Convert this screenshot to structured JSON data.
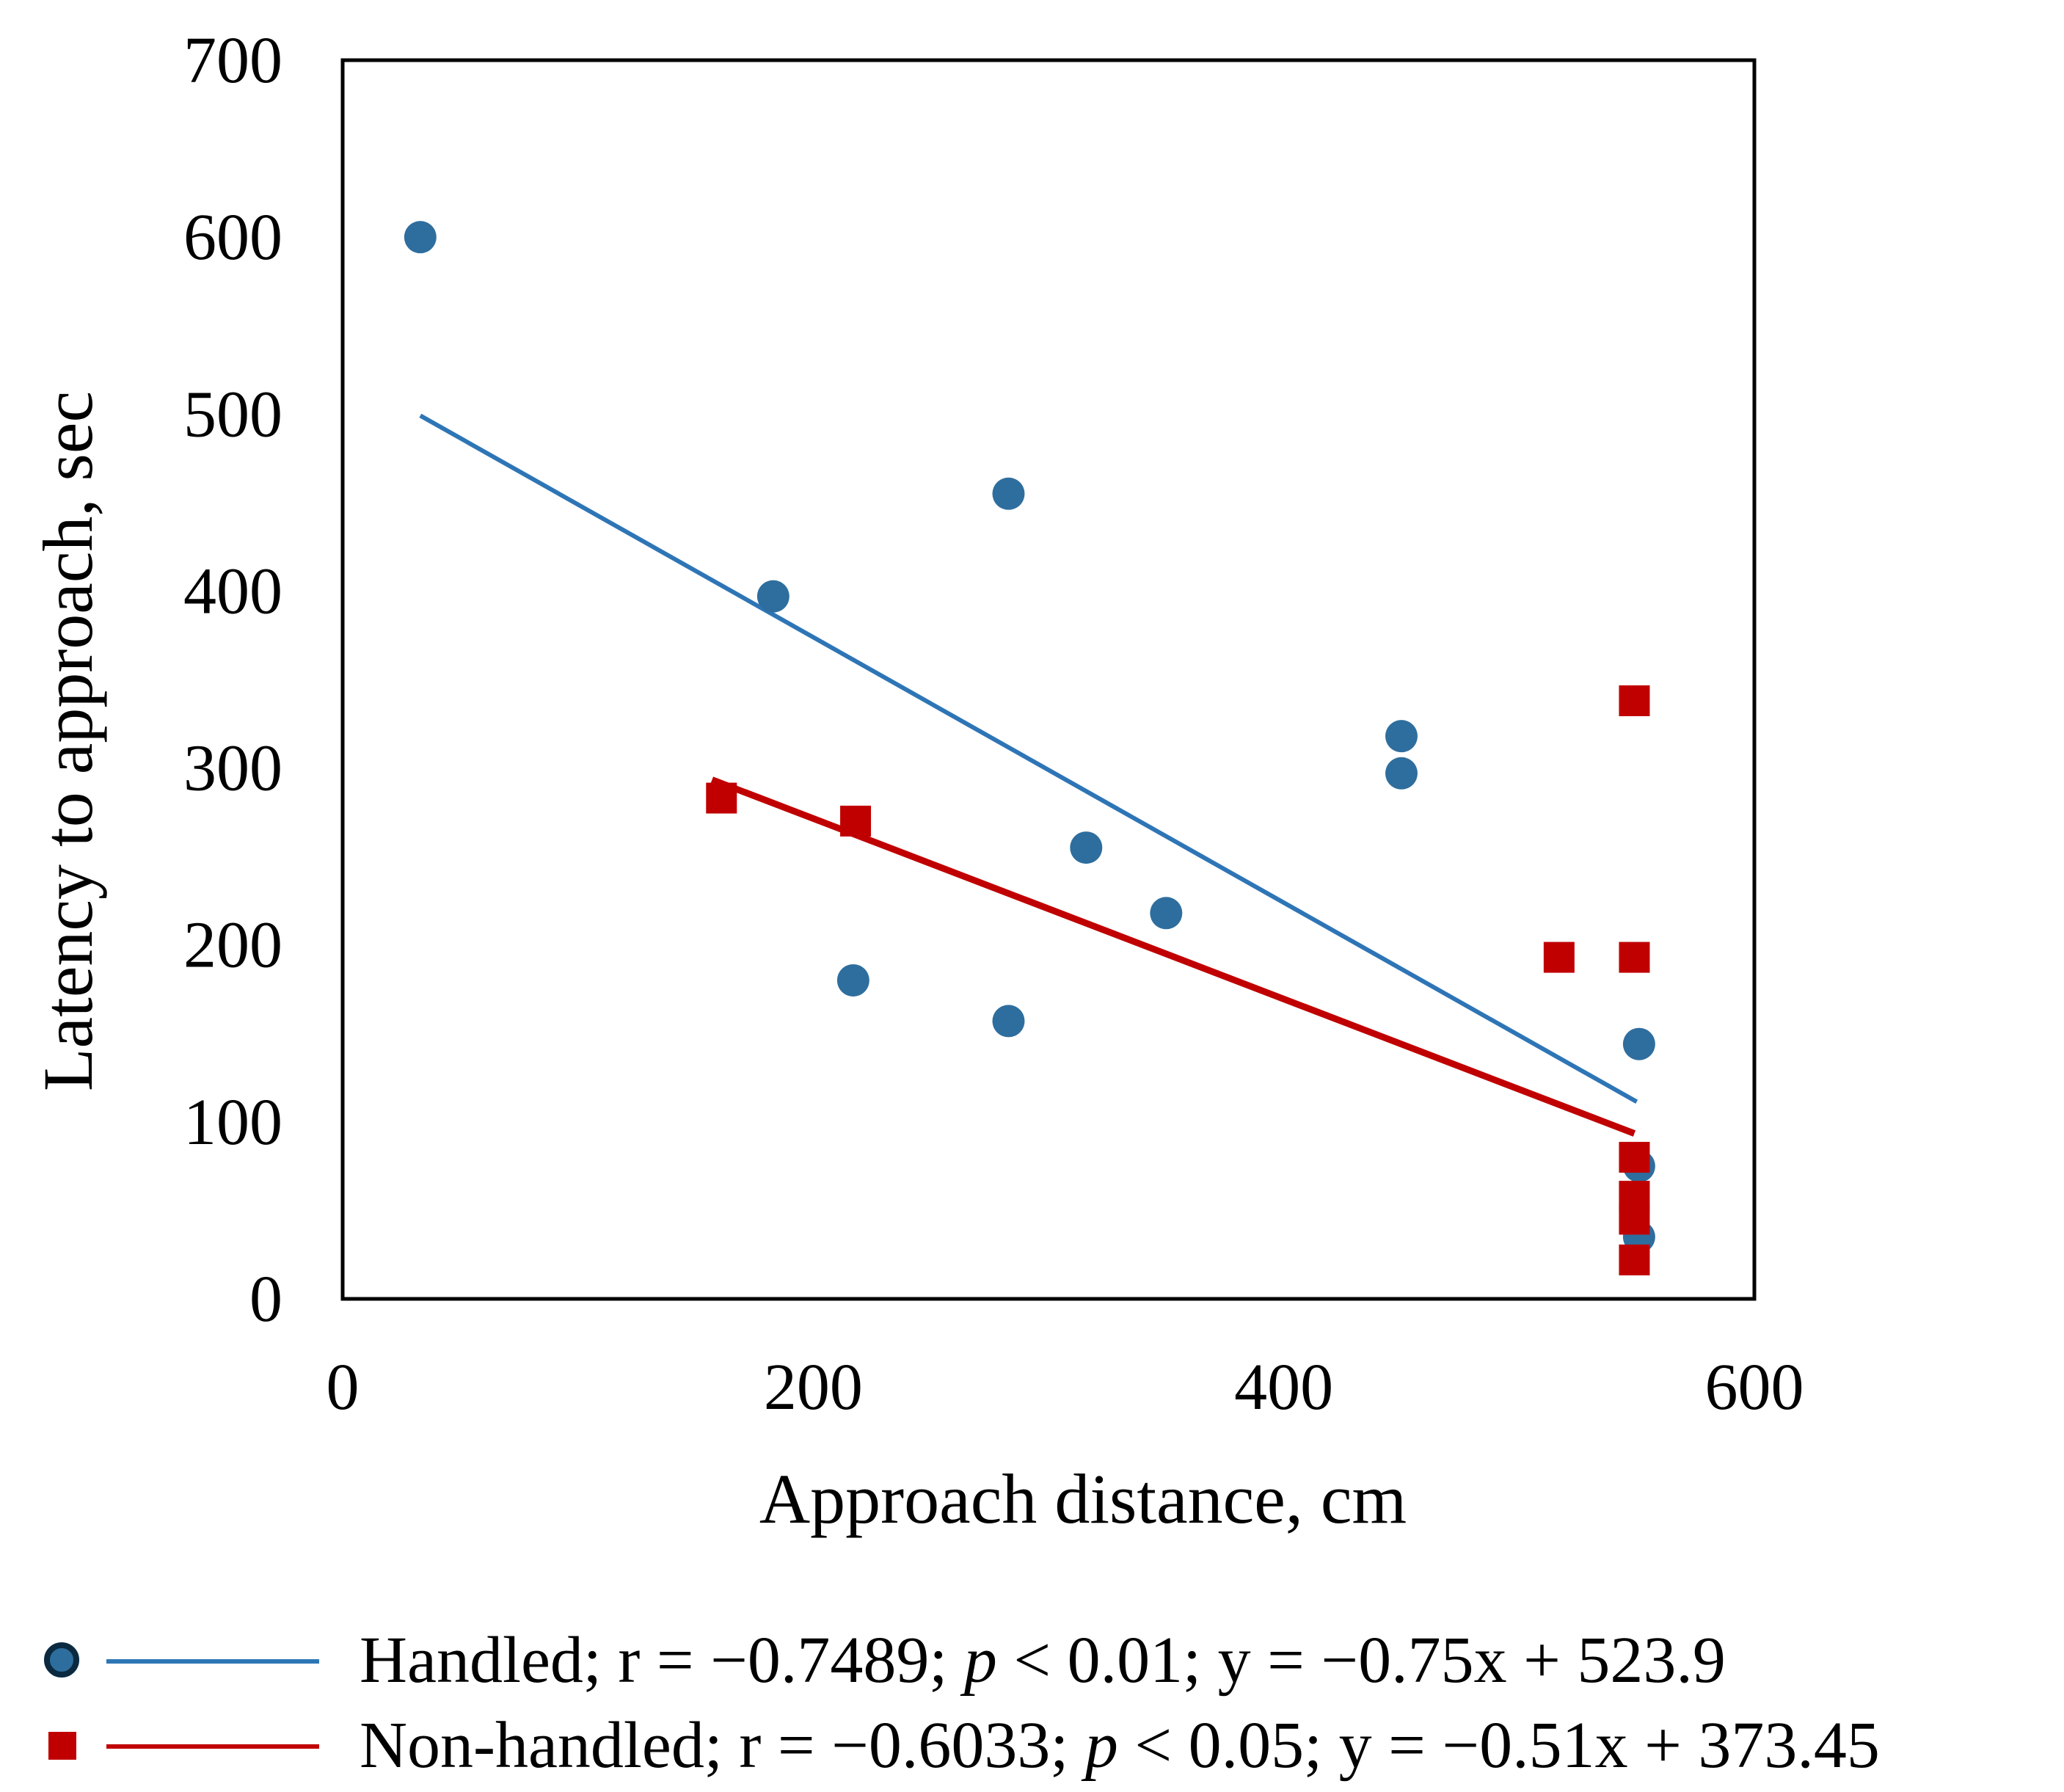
{
  "chart_data": {
    "type": "scatter",
    "title": "",
    "xlabel": "Approach distance, cm",
    "ylabel": "Latency to approach, sec",
    "xlim": [
      0,
      600
    ],
    "ylim": [
      0,
      700
    ],
    "xticks": [
      0,
      200,
      400,
      600
    ],
    "yticks": [
      0,
      100,
      200,
      300,
      400,
      500,
      600,
      700
    ],
    "legend_position": "bottom",
    "series": [
      {
        "name": "Handled",
        "legend_label": "Handled; r = −0.7489; ",
        "legend_p": "p",
        "legend_rest": " < 0.01; y = −0.75x + 523.9",
        "marker": "circle",
        "color": "#2e6e9e",
        "line_color": "#2e75b6",
        "trendline": {
          "slope": -0.75,
          "intercept": 523.9,
          "x_range": [
            33,
            550
          ]
        },
        "points": [
          {
            "x": 33,
            "y": 600
          },
          {
            "x": 183,
            "y": 397
          },
          {
            "x": 283,
            "y": 455
          },
          {
            "x": 217,
            "y": 180
          },
          {
            "x": 283,
            "y": 157
          },
          {
            "x": 316,
            "y": 255
          },
          {
            "x": 350,
            "y": 218
          },
          {
            "x": 450,
            "y": 318
          },
          {
            "x": 450,
            "y": 297
          },
          {
            "x": 551,
            "y": 144
          },
          {
            "x": 551,
            "y": 75
          },
          {
            "x": 551,
            "y": 35
          }
        ]
      },
      {
        "name": "Non-handled",
        "legend_label": "Non-handled; r = −0.6033; ",
        "legend_p": "p",
        "legend_rest": " < 0.05; y = −0.51x + 373.45",
        "marker": "square",
        "color": "#c00000",
        "line_color": "#c00000",
        "trendline": {
          "slope": -0.51,
          "intercept": 373.45,
          "x_range": [
            157,
            549
          ]
        },
        "points": [
          {
            "x": 161,
            "y": 283
          },
          {
            "x": 218,
            "y": 270
          },
          {
            "x": 517,
            "y": 193
          },
          {
            "x": 549,
            "y": 338
          },
          {
            "x": 549,
            "y": 193
          },
          {
            "x": 549,
            "y": 80
          },
          {
            "x": 549,
            "y": 58
          },
          {
            "x": 549,
            "y": 45
          },
          {
            "x": 549,
            "y": 22
          }
        ]
      }
    ]
  }
}
